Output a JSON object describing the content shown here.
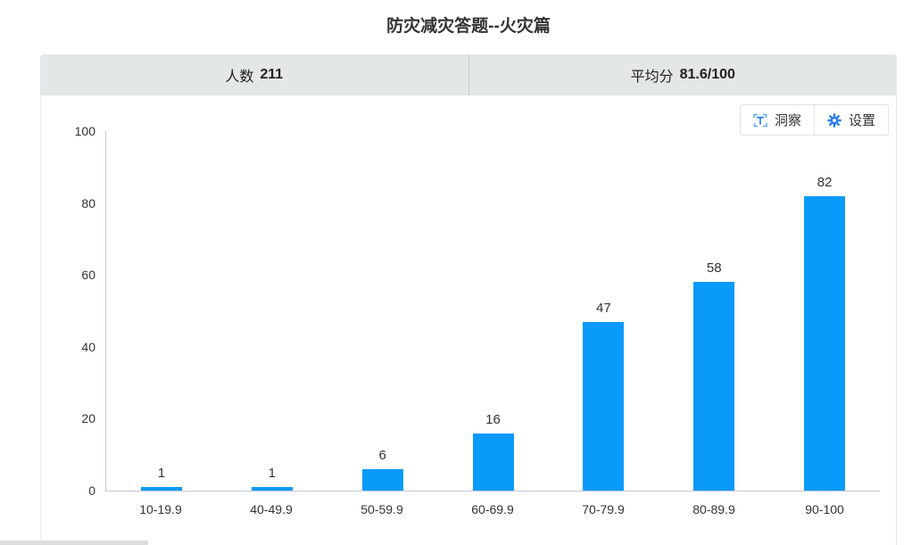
{
  "title": "防灾减灾答题--火灾篇",
  "stats": {
    "people_label": "人数",
    "people_value": "211",
    "average_label": "平均分",
    "average_value": "81.6/100"
  },
  "toolbar": {
    "insight_label": "洞察",
    "settings_label": "设置"
  },
  "colors": {
    "bar": "#0a9afa",
    "stats_bar_bg": "#e3e7e8",
    "axis_line": "#c2c6da",
    "icon_blue": "#2a7de9",
    "icon_blue_light": "#61a8f0"
  },
  "chart_data": {
    "type": "bar",
    "categories": [
      "10-19.9",
      "40-49.9",
      "50-59.9",
      "60-69.9",
      "70-79.9",
      "80-89.9",
      "90-100"
    ],
    "values": [
      1,
      1,
      6,
      16,
      47,
      58,
      82
    ],
    "title": "防灾减灾答题--火灾篇",
    "xlabel": "",
    "ylabel": "",
    "ylim": [
      0,
      100
    ],
    "yticks": [
      0,
      20,
      40,
      60,
      80,
      100
    ],
    "grid": false,
    "legend": false,
    "bar_color": "#0a9afa",
    "value_labels_shown": true
  }
}
